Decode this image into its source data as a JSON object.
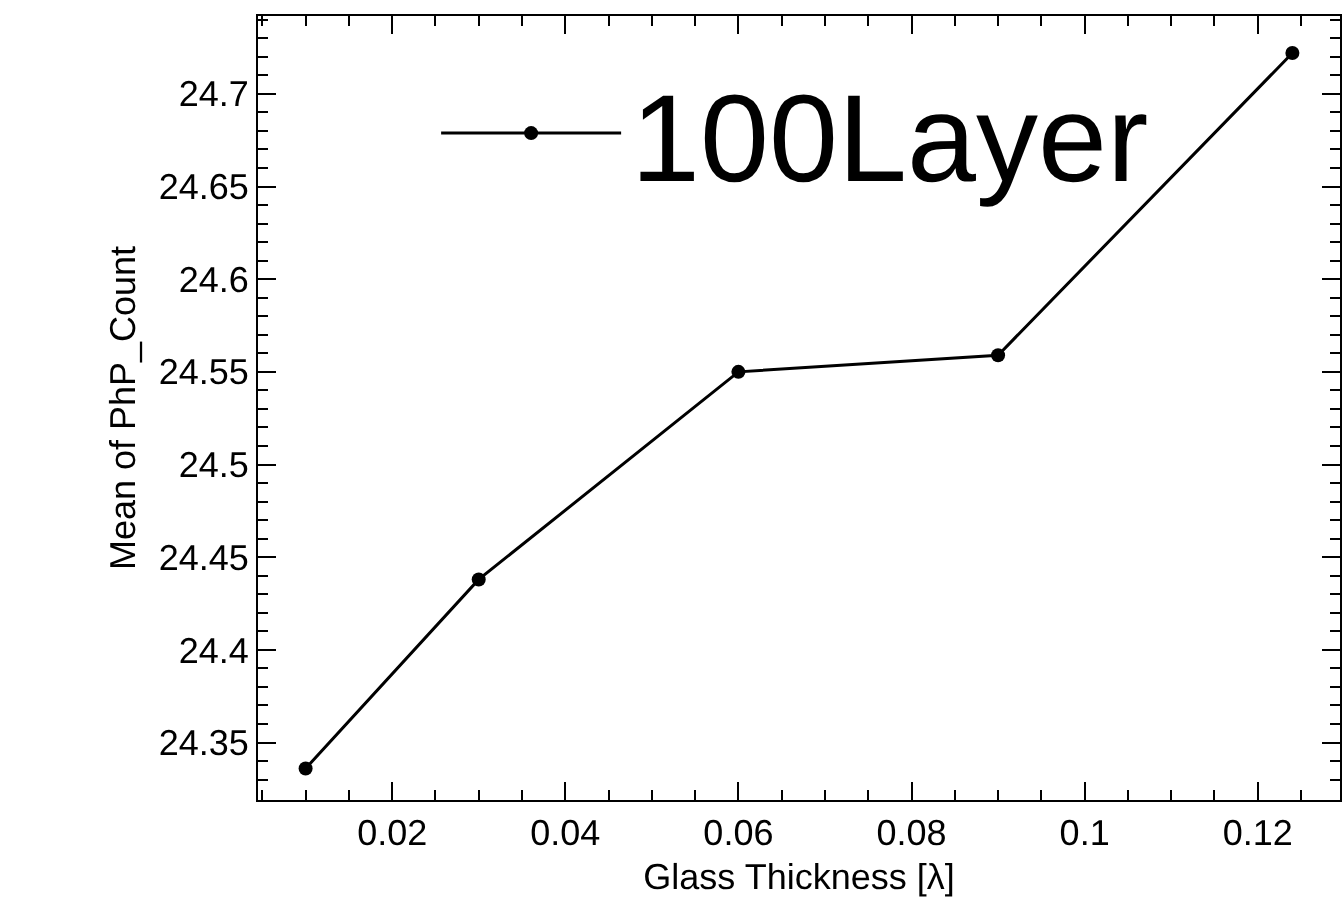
{
  "chart_data": {
    "type": "line",
    "xlabel": "Glass Thickness [λ]",
    "ylabel": "Mean of PhP_Count",
    "x": [
      0.01,
      0.03,
      0.06,
      0.09,
      0.124
    ],
    "series": [
      {
        "name": "100Layer",
        "color": "#000000",
        "values": [
          24.336,
          24.438,
          24.55,
          24.559,
          24.722
        ]
      }
    ],
    "xlim": [
      0.0045,
      0.1295
    ],
    "xticks": [
      0.02,
      0.04,
      0.06,
      0.08,
      0.1,
      0.12
    ],
    "ylim": [
      24.319,
      24.742
    ],
    "yticks": [
      24.35,
      24.4,
      24.45,
      24.5,
      24.55,
      24.6,
      24.65,
      24.7
    ],
    "grid": false,
    "legend": "top",
    "marker": "circle",
    "line_style": "solid"
  }
}
